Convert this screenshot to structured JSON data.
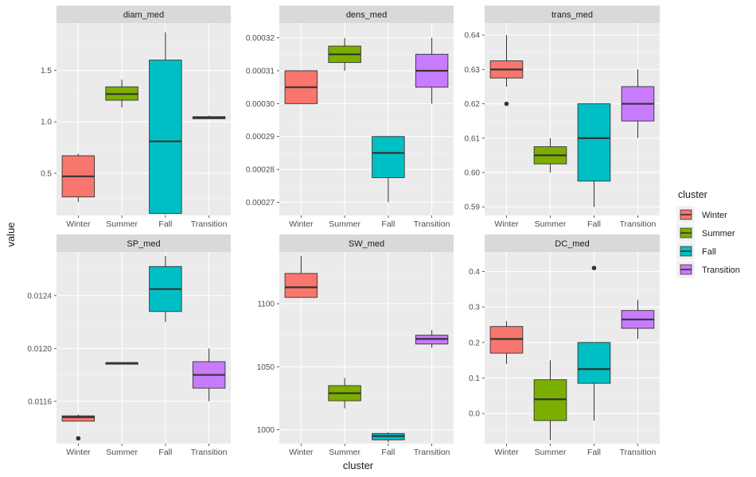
{
  "chart_data": {
    "type": "boxplot",
    "xlabel": "cluster",
    "ylabel": "value",
    "categories": [
      "Winter",
      "Summer",
      "Fall",
      "Transition"
    ],
    "legend": {
      "title": "cluster",
      "placement": "right",
      "entries": [
        {
          "label": "Winter",
          "color": "#F8766D"
        },
        {
          "label": "Summer",
          "color": "#7CAE00"
        },
        {
          "label": "Fall",
          "color": "#00BFC4"
        },
        {
          "label": "Transition",
          "color": "#C77CFF"
        }
      ]
    },
    "panels": [
      {
        "title": "diam_med",
        "ylim": [
          0.09,
          1.96
        ],
        "yticks": [
          {
            "v": 0.5,
            "label": "0.5"
          },
          {
            "v": 1.0,
            "label": "1.0"
          },
          {
            "v": 1.5,
            "label": "1.5"
          }
        ],
        "boxes": [
          {
            "min": 0.22,
            "q1": 0.27,
            "median": 0.47,
            "q3": 0.67,
            "max": 0.69,
            "outliers": []
          },
          {
            "min": 1.14,
            "q1": 1.21,
            "median": 1.27,
            "q3": 1.34,
            "max": 1.41,
            "outliers": []
          },
          {
            "min": 0.1,
            "q1": 0.11,
            "median": 0.81,
            "q3": 1.6,
            "max": 1.87,
            "outliers": []
          },
          {
            "min": 1.03,
            "q1": 1.03,
            "median": 1.04,
            "q3": 1.05,
            "max": 1.06,
            "outliers": []
          }
        ]
      },
      {
        "title": "dens_med",
        "ylim": [
          0.000266,
          0.0003245
        ],
        "yticks": [
          {
            "v": 0.00027,
            "label": "0.00027"
          },
          {
            "v": 0.00028,
            "label": "0.00028"
          },
          {
            "v": 0.00029,
            "label": "0.00029"
          },
          {
            "v": 0.0003,
            "label": "0.00030"
          },
          {
            "v": 0.00031,
            "label": "0.00031"
          },
          {
            "v": 0.00032,
            "label": "0.00032"
          }
        ],
        "boxes": [
          {
            "min": 0.0003,
            "q1": 0.0003,
            "median": 0.000305,
            "q3": 0.00031,
            "max": 0.00031,
            "outliers": []
          },
          {
            "min": 0.00031,
            "q1": 0.0003125,
            "median": 0.000315,
            "q3": 0.0003175,
            "max": 0.00032,
            "outliers": []
          },
          {
            "min": 0.00027,
            "q1": 0.0002775,
            "median": 0.000285,
            "q3": 0.00029,
            "max": 0.00029,
            "outliers": []
          },
          {
            "min": 0.0003,
            "q1": 0.000305,
            "median": 0.00031,
            "q3": 0.000315,
            "max": 0.00032,
            "outliers": []
          }
        ]
      },
      {
        "title": "trans_med",
        "ylim": [
          0.5875,
          0.6435
        ],
        "yticks": [
          {
            "v": 0.59,
            "label": "0.59"
          },
          {
            "v": 0.6,
            "label": "0.60"
          },
          {
            "v": 0.61,
            "label": "0.61"
          },
          {
            "v": 0.62,
            "label": "0.62"
          },
          {
            "v": 0.63,
            "label": "0.63"
          },
          {
            "v": 0.64,
            "label": "0.64"
          }
        ],
        "boxes": [
          {
            "min": 0.625,
            "q1": 0.6275,
            "median": 0.63,
            "q3": 0.6325,
            "max": 0.64,
            "outliers": [
              0.62
            ]
          },
          {
            "min": 0.6,
            "q1": 0.6025,
            "median": 0.605,
            "q3": 0.6075,
            "max": 0.61,
            "outliers": []
          },
          {
            "min": 0.59,
            "q1": 0.5975,
            "median": 0.61,
            "q3": 0.62,
            "max": 0.62,
            "outliers": []
          },
          {
            "min": 0.61,
            "q1": 0.615,
            "median": 0.62,
            "q3": 0.625,
            "max": 0.63,
            "outliers": []
          }
        ]
      },
      {
        "title": "SP_med",
        "ylim": [
          0.01128,
          0.01273
        ],
        "yticks": [
          {
            "v": 0.0116,
            "label": "0.0116"
          },
          {
            "v": 0.012,
            "label": "0.0120"
          },
          {
            "v": 0.0124,
            "label": "0.0124"
          }
        ],
        "boxes": [
          {
            "min": 0.01145,
            "q1": 0.01145,
            "median": 0.01148,
            "q3": 0.01149,
            "max": 0.0115,
            "outliers": [
              0.01132
            ]
          },
          {
            "min": 0.01189,
            "q1": 0.01189,
            "median": 0.01189,
            "q3": 0.01189,
            "max": 0.01189,
            "outliers": []
          },
          {
            "min": 0.0122,
            "q1": 0.01228,
            "median": 0.01245,
            "q3": 0.01262,
            "max": 0.0127,
            "outliers": []
          },
          {
            "min": 0.0116,
            "q1": 0.0117,
            "median": 0.0118,
            "q3": 0.0119,
            "max": 0.012,
            "outliers": []
          }
        ]
      },
      {
        "title": "SW_med",
        "ylim": [
          989,
          1141
        ],
        "yticks": [
          {
            "v": 1000,
            "label": "1000"
          },
          {
            "v": 1050,
            "label": "1050"
          },
          {
            "v": 1100,
            "label": "1100"
          }
        ],
        "boxes": [
          {
            "min": 1105,
            "q1": 1105,
            "median": 1113,
            "q3": 1124,
            "max": 1138,
            "outliers": []
          },
          {
            "min": 1017,
            "q1": 1023,
            "median": 1029,
            "q3": 1035,
            "max": 1041,
            "outliers": []
          },
          {
            "min": 990,
            "q1": 992,
            "median": 995,
            "q3": 997,
            "max": 998,
            "outliers": []
          },
          {
            "min": 1065,
            "q1": 1068,
            "median": 1072,
            "q3": 1075,
            "max": 1079,
            "outliers": []
          }
        ]
      },
      {
        "title": "DC_med",
        "ylim": [
          -0.085,
          0.455
        ],
        "yticks": [
          {
            "v": 0.0,
            "label": "0.0"
          },
          {
            "v": 0.1,
            "label": "0.1"
          },
          {
            "v": 0.2,
            "label": "0.2"
          },
          {
            "v": 0.3,
            "label": "0.3"
          },
          {
            "v": 0.4,
            "label": "0.4"
          }
        ],
        "boxes": [
          {
            "min": 0.14,
            "q1": 0.17,
            "median": 0.21,
            "q3": 0.245,
            "max": 0.26,
            "outliers": []
          },
          {
            "min": -0.075,
            "q1": -0.02,
            "median": 0.04,
            "q3": 0.095,
            "max": 0.15,
            "outliers": []
          },
          {
            "min": -0.02,
            "q1": 0.085,
            "median": 0.125,
            "q3": 0.2,
            "max": 0.2,
            "outliers": [
              0.41
            ]
          },
          {
            "min": 0.21,
            "q1": 0.24,
            "median": 0.265,
            "q3": 0.29,
            "max": 0.32,
            "outliers": []
          }
        ]
      }
    ]
  }
}
